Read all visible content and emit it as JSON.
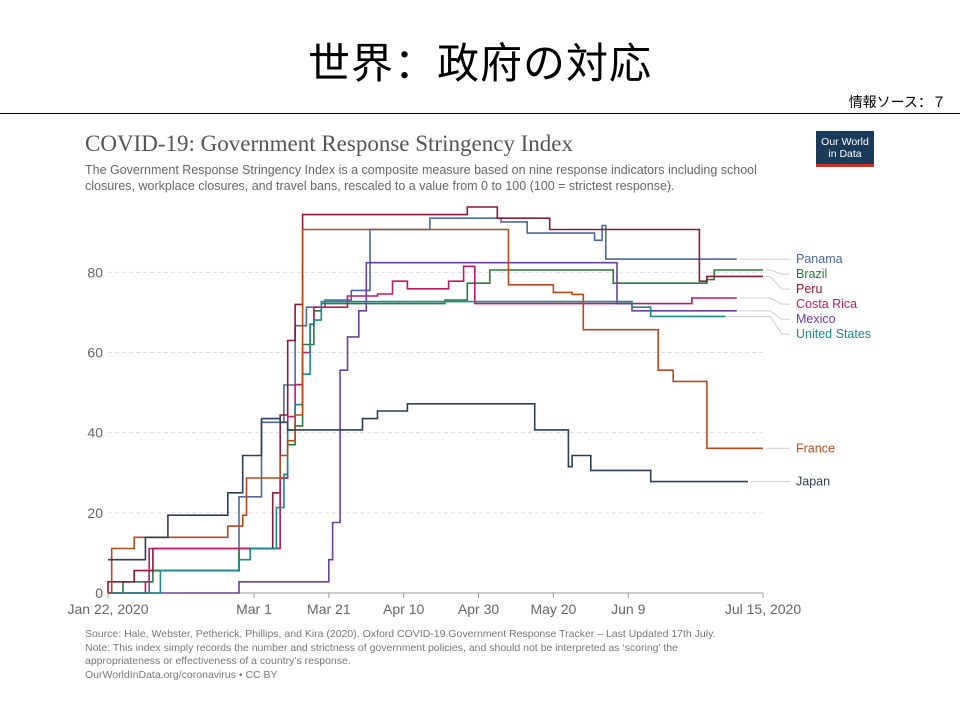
{
  "slide": {
    "title": "世界：政府の対応",
    "source_note": "情報ソース：７"
  },
  "logo": {
    "line1": "Our World",
    "line2": "in Data",
    "bg_color": "#1a3a5c",
    "accent_color": "#c8341f"
  },
  "chart_data": {
    "type": "line",
    "title": "COVID-19: Government Response Stringency Index",
    "subtitle": "The Government Response Stringency Index is a composite measure based on nine response indicators including school closures, workplace closures, and travel bans, rescaled to a value from 0 to 100 (100 = strictest response).",
    "ylim": [
      0,
      100
    ],
    "y_ticks": [
      "0",
      "20",
      "40",
      "60",
      "80"
    ],
    "y_tick_values": [
      0,
      20,
      40,
      60,
      80
    ],
    "x_ticks": [
      "Jan 22, 2020",
      "Mar 1",
      "Mar 21",
      "Apr 10",
      "Apr 30",
      "May 20",
      "Jun 9",
      "Jul 15, 2020"
    ],
    "x_tick_days": [
      0,
      39,
      59,
      79,
      99,
      119,
      139,
      175
    ],
    "x_range_days": [
      0,
      175
    ],
    "grid": true,
    "legend": "right, labels at line ends",
    "series": [
      {
        "name": "Panama",
        "color": "#4c6a9c",
        "points": [
          [
            0,
            0
          ],
          [
            11,
            0
          ],
          [
            11,
            5.6
          ],
          [
            35,
            5.6
          ],
          [
            35,
            24
          ],
          [
            41,
            24
          ],
          [
            41,
            42.6
          ],
          [
            47,
            42.6
          ],
          [
            47,
            51.9
          ],
          [
            50,
            51.9
          ],
          [
            50,
            66.7
          ],
          [
            53,
            66.7
          ],
          [
            53,
            71.3
          ],
          [
            58,
            71.3
          ],
          [
            58,
            73.1
          ],
          [
            65,
            73.1
          ],
          [
            65,
            75.5
          ],
          [
            70,
            75.5
          ],
          [
            70,
            90.7
          ],
          [
            86,
            90.7
          ],
          [
            86,
            93.5
          ],
          [
            105,
            93.5
          ],
          [
            105,
            92.6
          ],
          [
            112,
            92.6
          ],
          [
            112,
            89.8
          ],
          [
            130,
            89.8
          ],
          [
            130,
            88
          ],
          [
            132,
            88
          ],
          [
            132,
            91.7
          ],
          [
            133,
            91.7
          ],
          [
            133,
            83.3
          ],
          [
            168,
            83.3
          ]
        ]
      },
      {
        "name": "Brazil",
        "color": "#2a7a3a",
        "points": [
          [
            0,
            0
          ],
          [
            4,
            0
          ],
          [
            4,
            2.8
          ],
          [
            12,
            2.8
          ],
          [
            12,
            5.6
          ],
          [
            35,
            5.6
          ],
          [
            35,
            11.1
          ],
          [
            46,
            11.1
          ],
          [
            46,
            28.7
          ],
          [
            48,
            28.7
          ],
          [
            48,
            37
          ],
          [
            50,
            37
          ],
          [
            50,
            41.7
          ],
          [
            52,
            41.7
          ],
          [
            52,
            62
          ],
          [
            55,
            62
          ],
          [
            55,
            70.4
          ],
          [
            57,
            70.4
          ],
          [
            57,
            72.2
          ],
          [
            84,
            72.2
          ],
          [
            84,
            72.2
          ],
          [
            90,
            72.2
          ],
          [
            90,
            73.1
          ],
          [
            96,
            73.1
          ],
          [
            96,
            77.3
          ],
          [
            102,
            77.3
          ],
          [
            102,
            80.6
          ],
          [
            135,
            80.6
          ],
          [
            135,
            77.3
          ],
          [
            160,
            77.3
          ],
          [
            160,
            78.2
          ],
          [
            162,
            78.2
          ],
          [
            162,
            80.6
          ],
          [
            175,
            80.6
          ]
        ]
      },
      {
        "name": "Peru",
        "color": "#8b1a3a",
        "points": [
          [
            0,
            0
          ],
          [
            0,
            2.8
          ],
          [
            7,
            2.8
          ],
          [
            7,
            5.6
          ],
          [
            12,
            5.6
          ],
          [
            12,
            11.1
          ],
          [
            44,
            11.1
          ],
          [
            44,
            25
          ],
          [
            46,
            25
          ],
          [
            46,
            44.4
          ],
          [
            48,
            44.4
          ],
          [
            48,
            63
          ],
          [
            50,
            63
          ],
          [
            50,
            72
          ],
          [
            52,
            72
          ],
          [
            52,
            94.4
          ],
          [
            86,
            94.4
          ],
          [
            86,
            94.4
          ],
          [
            96,
            94.4
          ],
          [
            96,
            96.3
          ],
          [
            104,
            96.3
          ],
          [
            104,
            93.5
          ],
          [
            118,
            93.5
          ],
          [
            118,
            90.7
          ],
          [
            158,
            90.7
          ],
          [
            158,
            77.8
          ],
          [
            160,
            77.8
          ],
          [
            160,
            79
          ],
          [
            175,
            79
          ]
        ]
      },
      {
        "name": "Costa Rica",
        "color": "#c0186e",
        "points": [
          [
            0,
            0
          ],
          [
            10,
            0
          ],
          [
            10,
            2.8
          ],
          [
            11,
            2.8
          ],
          [
            11,
            11.1
          ],
          [
            46,
            11.1
          ],
          [
            46,
            28.7
          ],
          [
            48,
            28.7
          ],
          [
            48,
            44
          ],
          [
            50,
            44
          ],
          [
            50,
            52
          ],
          [
            52,
            52
          ],
          [
            52,
            60
          ],
          [
            54,
            60
          ],
          [
            54,
            67
          ],
          [
            55,
            67
          ],
          [
            55,
            71.3
          ],
          [
            64,
            71.3
          ],
          [
            64,
            74.1
          ],
          [
            72,
            74.1
          ],
          [
            72,
            74.6
          ],
          [
            76,
            74.6
          ],
          [
            76,
            77.8
          ],
          [
            80,
            77.8
          ],
          [
            80,
            75.9
          ],
          [
            91,
            75.9
          ],
          [
            91,
            77.8
          ],
          [
            95,
            77.8
          ],
          [
            95,
            81.5
          ],
          [
            98,
            81.5
          ],
          [
            98,
            72.2
          ],
          [
            146,
            72.2
          ],
          [
            146,
            72.2
          ],
          [
            156,
            72.2
          ],
          [
            156,
            73.6
          ],
          [
            168,
            73.6
          ]
        ]
      },
      {
        "name": "Mexico",
        "color": "#6b3fa0",
        "points": [
          [
            0,
            0
          ],
          [
            35,
            0
          ],
          [
            35,
            2.8
          ],
          [
            59,
            2.8
          ],
          [
            59,
            8.3
          ],
          [
            60,
            8.3
          ],
          [
            60,
            17.6
          ],
          [
            62,
            17.6
          ],
          [
            62,
            55.6
          ],
          [
            64,
            55.6
          ],
          [
            64,
            63.9
          ],
          [
            67,
            63.9
          ],
          [
            67,
            70.4
          ],
          [
            69,
            70.4
          ],
          [
            69,
            82.4
          ],
          [
            136,
            82.4
          ],
          [
            136,
            72.2
          ],
          [
            140,
            72.2
          ],
          [
            140,
            70.4
          ],
          [
            168,
            70.4
          ]
        ]
      },
      {
        "name": "United States",
        "color": "#1a8a8a",
        "points": [
          [
            0,
            0
          ],
          [
            14,
            0
          ],
          [
            14,
            5.6
          ],
          [
            35,
            5.6
          ],
          [
            35,
            8.3
          ],
          [
            38,
            8.3
          ],
          [
            38,
            11.1
          ],
          [
            45,
            11.1
          ],
          [
            45,
            21.3
          ],
          [
            47,
            21.3
          ],
          [
            47,
            29.6
          ],
          [
            48,
            29.6
          ],
          [
            48,
            40.7
          ],
          [
            50,
            40.7
          ],
          [
            50,
            47
          ],
          [
            52,
            47
          ],
          [
            52,
            54.6
          ],
          [
            54,
            54.6
          ],
          [
            54,
            67.1
          ],
          [
            55,
            67.1
          ],
          [
            55,
            68.1
          ],
          [
            57,
            68.1
          ],
          [
            57,
            72.7
          ],
          [
            113,
            72.7
          ],
          [
            113,
            72.7
          ],
          [
            140,
            72.7
          ],
          [
            140,
            71.3
          ],
          [
            145,
            71.3
          ],
          [
            145,
            69
          ],
          [
            165,
            69
          ]
        ]
      },
      {
        "name": "France",
        "color": "#b84a1a",
        "points": [
          [
            0,
            0
          ],
          [
            1,
            0
          ],
          [
            1,
            11.1
          ],
          [
            7,
            11.1
          ],
          [
            7,
            13.9
          ],
          [
            32,
            13.9
          ],
          [
            32,
            16.7
          ],
          [
            36,
            16.7
          ],
          [
            36,
            19.4
          ],
          [
            37,
            19.4
          ],
          [
            37,
            28.7
          ],
          [
            46,
            28.7
          ],
          [
            46,
            34.3
          ],
          [
            48,
            34.3
          ],
          [
            48,
            38
          ],
          [
            50,
            38
          ],
          [
            50,
            44.4
          ],
          [
            52,
            44.4
          ],
          [
            52,
            90.7
          ],
          [
            107,
            90.7
          ],
          [
            107,
            76.9
          ],
          [
            119,
            76.9
          ],
          [
            119,
            75
          ],
          [
            124,
            75
          ],
          [
            124,
            74.5
          ],
          [
            127,
            74.5
          ],
          [
            127,
            65.7
          ],
          [
            147,
            65.7
          ],
          [
            147,
            55.6
          ],
          [
            151,
            55.6
          ],
          [
            151,
            52.8
          ],
          [
            160,
            52.8
          ],
          [
            160,
            36.1
          ],
          [
            175,
            36.1
          ]
        ]
      },
      {
        "name": "Japan",
        "color": "#2d3f55",
        "points": [
          [
            0,
            8.3
          ],
          [
            10,
            8.3
          ],
          [
            10,
            13.9
          ],
          [
            16,
            13.9
          ],
          [
            16,
            19.4
          ],
          [
            32,
            19.4
          ],
          [
            32,
            25
          ],
          [
            36,
            25
          ],
          [
            36,
            34.3
          ],
          [
            41,
            34.3
          ],
          [
            41,
            43.5
          ],
          [
            46,
            43.5
          ],
          [
            46,
            42.6
          ],
          [
            48,
            42.6
          ],
          [
            48,
            40.7
          ],
          [
            57,
            40.7
          ],
          [
            57,
            40.7
          ],
          [
            68,
            40.7
          ],
          [
            68,
            43.5
          ],
          [
            72,
            43.5
          ],
          [
            72,
            45.4
          ],
          [
            80,
            45.4
          ],
          [
            80,
            47.2
          ],
          [
            114,
            47.2
          ],
          [
            114,
            40.7
          ],
          [
            123,
            40.7
          ],
          [
            123,
            31.5
          ],
          [
            124,
            31.5
          ],
          [
            124,
            34.3
          ],
          [
            129,
            34.3
          ],
          [
            129,
            30.6
          ],
          [
            145,
            30.6
          ],
          [
            145,
            27.8
          ],
          [
            171,
            27.8
          ]
        ]
      }
    ],
    "legend_order": [
      "Panama",
      "Brazil",
      "Peru",
      "Costa Rica",
      "Mexico",
      "United States",
      "France",
      "Japan"
    ]
  },
  "footer": {
    "line1": "Source: Hale, Webster, Petherick, Phillips, and Kira (2020). Oxford COVID-19 Government Response Tracker – Last Updated 17th July.",
    "line2": "Note: This index simply records the number and strictness of government policies, and should not be interpreted as ‘scoring’ the",
    "line3": "appropriateness or effectiveness of a country’s response.",
    "line4": "OurWorldInData.org/coronavirus • CC BY"
  }
}
